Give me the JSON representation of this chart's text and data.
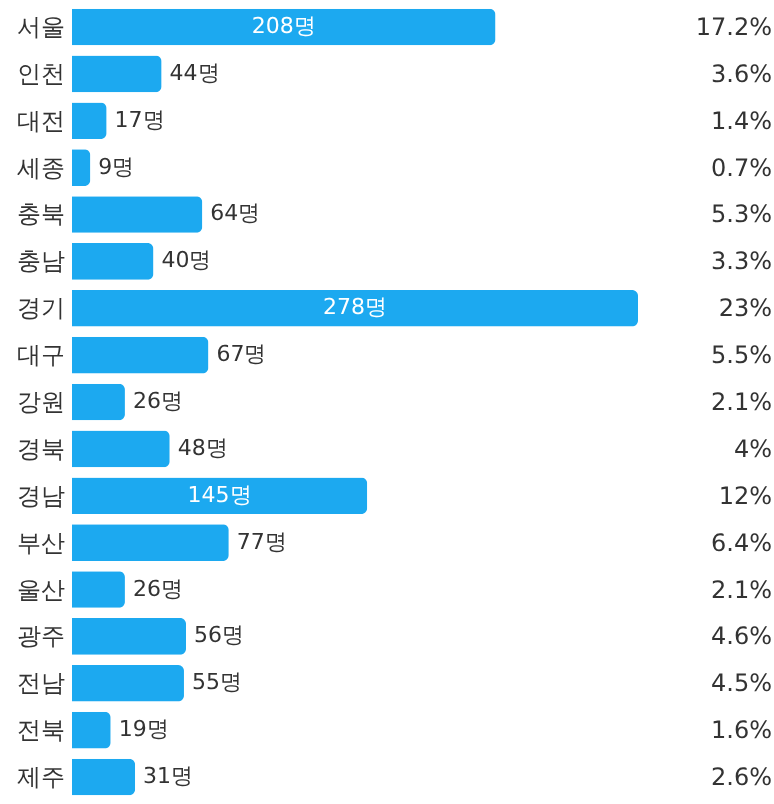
{
  "chart_data": {
    "type": "bar",
    "orientation": "horizontal",
    "color": "#1ca9f0",
    "categories": [
      "서울",
      "인천",
      "대전",
      "세종",
      "충북",
      "충남",
      "경기",
      "대구",
      "강원",
      "경북",
      "경남",
      "부산",
      "울산",
      "광주",
      "전남",
      "전북",
      "제주"
    ],
    "values": [
      208,
      44,
      17,
      9,
      64,
      40,
      278,
      67,
      26,
      48,
      145,
      77,
      26,
      56,
      55,
      19,
      31
    ],
    "value_labels": [
      "208명",
      "44명",
      "17명",
      "9명",
      "64명",
      "40명",
      "278명",
      "67명",
      "26명",
      "48명",
      "145명",
      "77명",
      "26명",
      "56명",
      "55명",
      "19명",
      "31명"
    ],
    "annotations": [
      "17.2%",
      "3.6%",
      "1.4%",
      "0.7%",
      "5.3%",
      "3.3%",
      "23%",
      "5.5%",
      "2.1%",
      "4%",
      "12%",
      "6.4%",
      "2.1%",
      "4.6%",
      "4.5%",
      "1.6%",
      "2.6%"
    ],
    "xlim": [
      0,
      278
    ],
    "tick_labels": "y",
    "grid": false
  }
}
